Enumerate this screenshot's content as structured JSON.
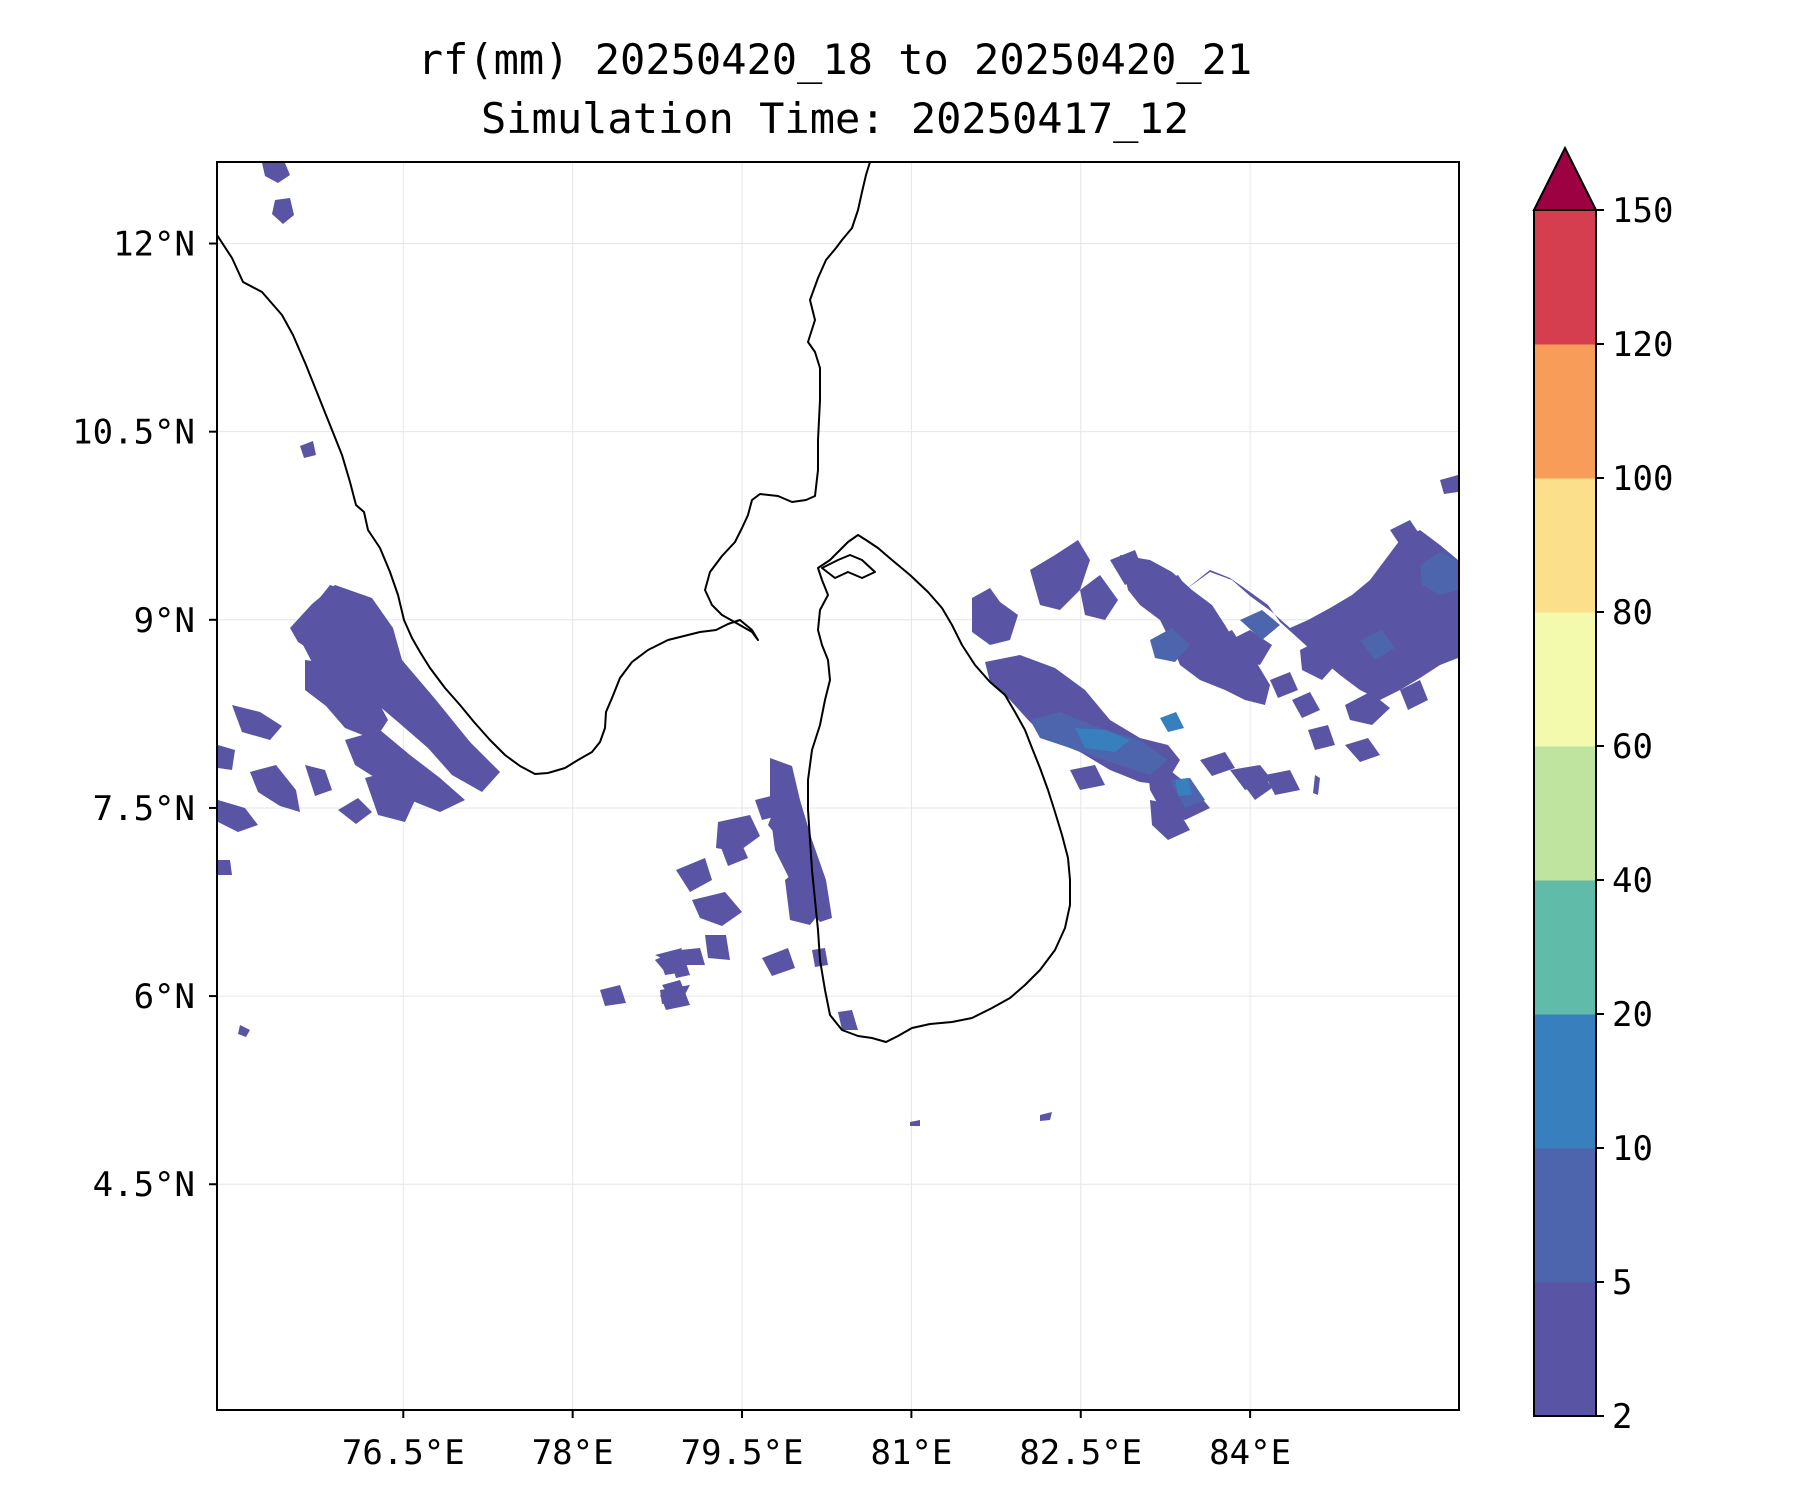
{
  "title": "rf(mm) 20250420_18 to 20250420_21",
  "subtitle": "Simulation Time: 20250417_12",
  "map": {
    "lon_range": [
      74.85,
      85.85
    ],
    "lat_range": [
      2.7,
      12.65
    ],
    "x_ticks": [
      {
        "value": 76.5,
        "label": "76.5°E"
      },
      {
        "value": 78.0,
        "label": "78°E"
      },
      {
        "value": 79.5,
        "label": "79.5°E"
      },
      {
        "value": 81.0,
        "label": "81°E"
      },
      {
        "value": 82.5,
        "label": "82.5°E"
      },
      {
        "value": 84.0,
        "label": "84°E"
      }
    ],
    "y_ticks": [
      {
        "value": 12.0,
        "label": "12°N"
      },
      {
        "value": 10.5,
        "label": "10.5°N"
      },
      {
        "value": 9.0,
        "label": "9°N"
      },
      {
        "value": 7.5,
        "label": "7.5°N"
      },
      {
        "value": 6.0,
        "label": "6°N"
      },
      {
        "value": 4.5,
        "label": "4.5°N"
      }
    ],
    "grid": true,
    "coastline_color": "#000000"
  },
  "colorbar": {
    "levels": [
      {
        "value": 2,
        "label": "2"
      },
      {
        "value": 5,
        "label": "5"
      },
      {
        "value": 10,
        "label": "10"
      },
      {
        "value": 20,
        "label": "20"
      },
      {
        "value": 40,
        "label": "40"
      },
      {
        "value": 60,
        "label": "60"
      },
      {
        "value": 80,
        "label": "80"
      },
      {
        "value": 100,
        "label": "100"
      },
      {
        "value": 120,
        "label": "120"
      },
      {
        "value": 150,
        "label": "150"
      }
    ],
    "colors": [
      "#5954a4",
      "#4d65ad",
      "#3780bd",
      "#60bba9",
      "#bee4a0",
      "#f3faad",
      "#fbdf8a",
      "#f89d59",
      "#d53e4f"
    ],
    "extend_color": "#9e0142",
    "extend": "max"
  },
  "rain_colors": {
    "low": "#5954a4",
    "mid": "#4d65ad",
    "high": "#3780bd"
  }
}
